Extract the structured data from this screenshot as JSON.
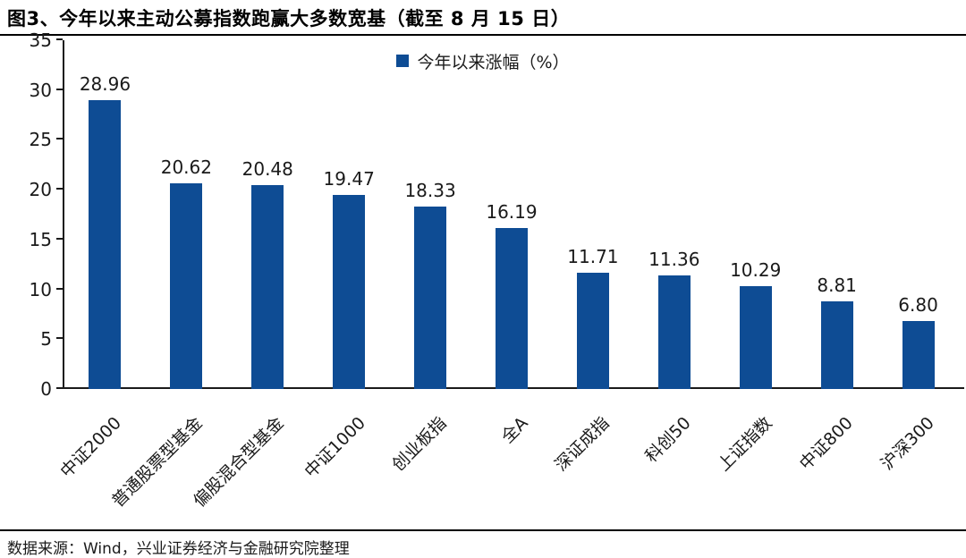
{
  "page": {
    "title": "图3、今年以来主动公募指数跑赢大多数宽基（截至 8 月 15 日）",
    "footer": "数据来源：Wind，兴业证券经济与金融研究院整理"
  },
  "colors": {
    "bar": "#0E4C94",
    "axis": "#1A1A1A",
    "text": "#1A1A1A",
    "rule": "#000000"
  },
  "chart_data": {
    "type": "bar",
    "title": "图3、今年以来主动公募指数跑赢大多数宽基（截至 8 月 15 日）",
    "legend": [
      "今年以来涨幅（%）"
    ],
    "legend_position": "top-center",
    "categories": [
      "中证2000",
      "普通股票型基金",
      "偏股混合型基金",
      "中证1000",
      "创业板指",
      "全A",
      "深证成指",
      "科创50",
      "上证指数",
      "中证800",
      "沪深300"
    ],
    "values": [
      28.96,
      20.62,
      20.48,
      19.47,
      18.33,
      16.19,
      11.71,
      11.36,
      10.29,
      8.81,
      6.8
    ],
    "xlabel": "",
    "ylabel": "",
    "ylim": [
      0,
      35
    ],
    "yticks": [
      0,
      5,
      10,
      15,
      20,
      25,
      30,
      35
    ],
    "grid": false,
    "data_labels": true,
    "x_tick_rotation_deg": 45
  }
}
